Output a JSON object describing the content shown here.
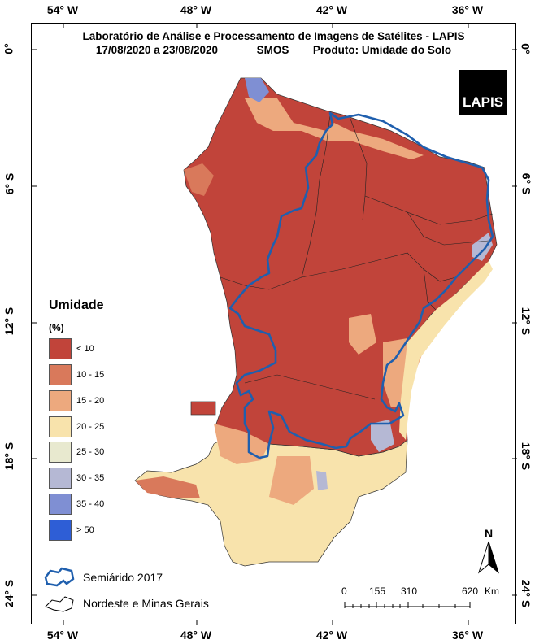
{
  "title": {
    "line1": "Laboratório de Análise e Processamento de Imagens de Satélites - LAPIS",
    "period": "17/08/2020  a  23/08/2020",
    "sensor": "SMOS",
    "product": "Produto: Umidade do Solo"
  },
  "logo_text": "LAPIS",
  "longitude_labels": [
    "54° W",
    "48° W",
    "42° W",
    "36° W"
  ],
  "latitude_labels": [
    "0°",
    "6° S",
    "12° S",
    "18° S",
    "24° S"
  ],
  "legend": {
    "title": "Umidade",
    "unit": "(%)",
    "classes": [
      {
        "label": "< 10",
        "color": "#c1443a"
      },
      {
        "label": "10 - 15",
        "color": "#d9795b"
      },
      {
        "label": "15 - 20",
        "color": "#eda97e"
      },
      {
        "label": "20 - 25",
        "color": "#f8e3ac"
      },
      {
        "label": "25 - 30",
        "color": "#e8e9cf"
      },
      {
        "label": "30 - 35",
        "color": "#b5b8d4"
      },
      {
        "label": "35 - 40",
        "color": "#7f8fd3"
      },
      {
        "label": "> 50",
        "color": "#2e5ed6"
      }
    ]
  },
  "boundary_legend": {
    "semiarid_label": "Semiárido 2017",
    "region_label": "Nordeste e Minas Gerais",
    "semiarid_color": "#1f5fae"
  },
  "scale": {
    "ticks": [
      "0",
      "155",
      "310",
      "620"
    ],
    "unit": "Km"
  },
  "north_label": "N"
}
